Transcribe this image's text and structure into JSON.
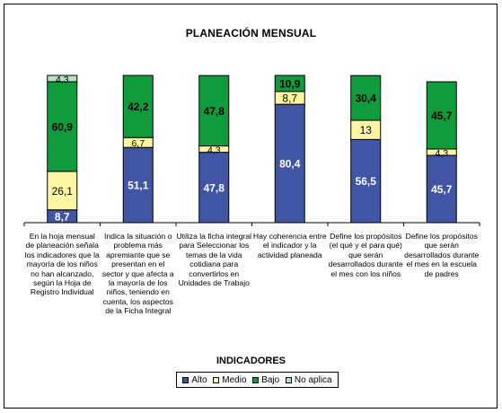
{
  "chart_data": {
    "type": "bar",
    "stacked": true,
    "title": "PLANEACIÓN MENSUAL",
    "xlabel": "INDICADORES",
    "ylim": [
      0,
      100
    ],
    "grid": false,
    "legend_position": "bottom",
    "categories": [
      "En la hoja mensual de planeación señala los indicadores que la mayoría de los niños no han alcanzado, según la Hoja de Registro Individual",
      "Indica la situación o problema más apremiante que se presentan en el sector y que afecta a la mayoría de los niños, teniendo en cuenta, los aspectos de la Ficha Integral",
      "Utiliza la ficha integral para Seleccionar los temas de la vida cotidiana para convertirlos en Unidades de Trabajo",
      "Hay coherencia entre el indicador y la actividad planeada",
      "Define los propósitos (el qué y el para qué) que serán desarrollados durante el mes con los niños",
      "Define los propósitos que serán desarrollados durante el mes en la escuela de padres"
    ],
    "series": [
      {
        "name": "Alto",
        "color": "#4155a5",
        "label_color": "#ffffff",
        "values": [
          8.7,
          51.1,
          47.8,
          80.4,
          56.5,
          45.7
        ],
        "labels": [
          "8,7",
          "51,1",
          "47,8",
          "80,4",
          "56,5",
          "45,7"
        ]
      },
      {
        "name": "Medio",
        "color": "#fdf7a5",
        "label_color": "#000000",
        "values": [
          26.1,
          6.7,
          4.3,
          8.7,
          13,
          4.3
        ],
        "labels": [
          "26,1",
          "6,7",
          "4,3",
          "8,7",
          "13",
          "4,3"
        ]
      },
      {
        "name": "Bajo",
        "color": "#109b3c",
        "label_color": "#000000",
        "values": [
          60.9,
          42.2,
          47.8,
          10.9,
          30.4,
          45.7
        ],
        "labels": [
          "60,9",
          "42,2",
          "47,8",
          "10,9",
          "30,4",
          "45,7"
        ]
      },
      {
        "name": "No aplica",
        "color": "#b7dfc3",
        "label_color": "#000000",
        "values": [
          4.3,
          0,
          0,
          0,
          0,
          0
        ],
        "labels": [
          "4,3",
          "",
          "",
          "",
          "",
          ""
        ]
      }
    ]
  }
}
